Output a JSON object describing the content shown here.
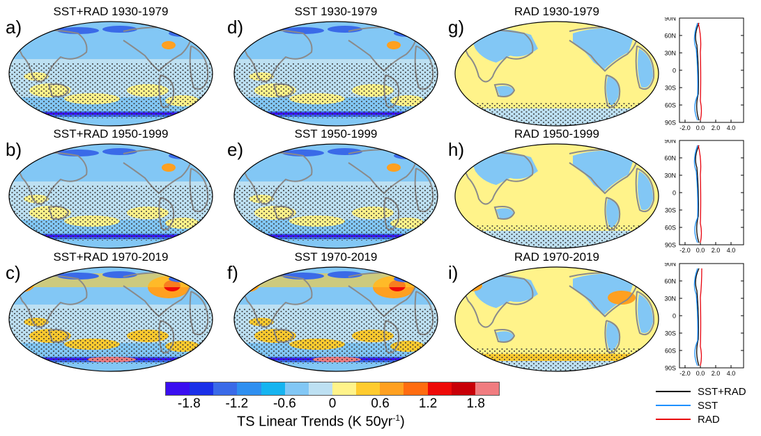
{
  "panels": [
    {
      "letter": "a)",
      "title": "SST+RAD 1930-1979",
      "type": "full"
    },
    {
      "letter": "b)",
      "title": "SST+RAD 1950-1999",
      "type": "full"
    },
    {
      "letter": "c)",
      "title": "SST+RAD 1970-2019",
      "type": "warm"
    },
    {
      "letter": "d)",
      "title": "SST 1930-1979",
      "type": "full"
    },
    {
      "letter": "e)",
      "title": "SST 1950-1999",
      "type": "full"
    },
    {
      "letter": "f)",
      "title": "SST 1970-2019",
      "type": "warm"
    },
    {
      "letter": "g)",
      "title": "RAD 1930-1979",
      "type": "rad"
    },
    {
      "letter": "h)",
      "title": "RAD 1950-1999",
      "type": "rad"
    },
    {
      "letter": "i)",
      "title": "RAD 1970-2019",
      "type": "radwarm"
    }
  ],
  "profile": {
    "y_ticks": [
      "90N",
      "60N",
      "30N",
      "0",
      "30S",
      "60S",
      "90S"
    ],
    "x_ticks": [
      "-2.0",
      "0.0",
      "2.0",
      "4.0"
    ]
  },
  "legend": [
    {
      "name": "SST+RAD",
      "color": "#000000"
    },
    {
      "name": "SST",
      "color": "#1e90ff"
    },
    {
      "name": "RAD",
      "color": "#e8000b"
    }
  ],
  "colorbar": {
    "colors": [
      "#3a0ef0",
      "#1a30e8",
      "#3a6ae8",
      "#2f8ff0",
      "#16b4f0",
      "#82c7f5",
      "#bde0f2",
      "#fff38a",
      "#ffcb2e",
      "#ffa020",
      "#ff6c10",
      "#ee0a08",
      "#c80008",
      "#f07c80"
    ],
    "labels": [
      "-1.8",
      "-1.2",
      "-0.6",
      "0",
      "0.6",
      "1.2",
      "1.8"
    ],
    "title": "TS Linear Trends (K 50yr",
    "title_sup": "-1",
    "title_end": ")"
  }
}
